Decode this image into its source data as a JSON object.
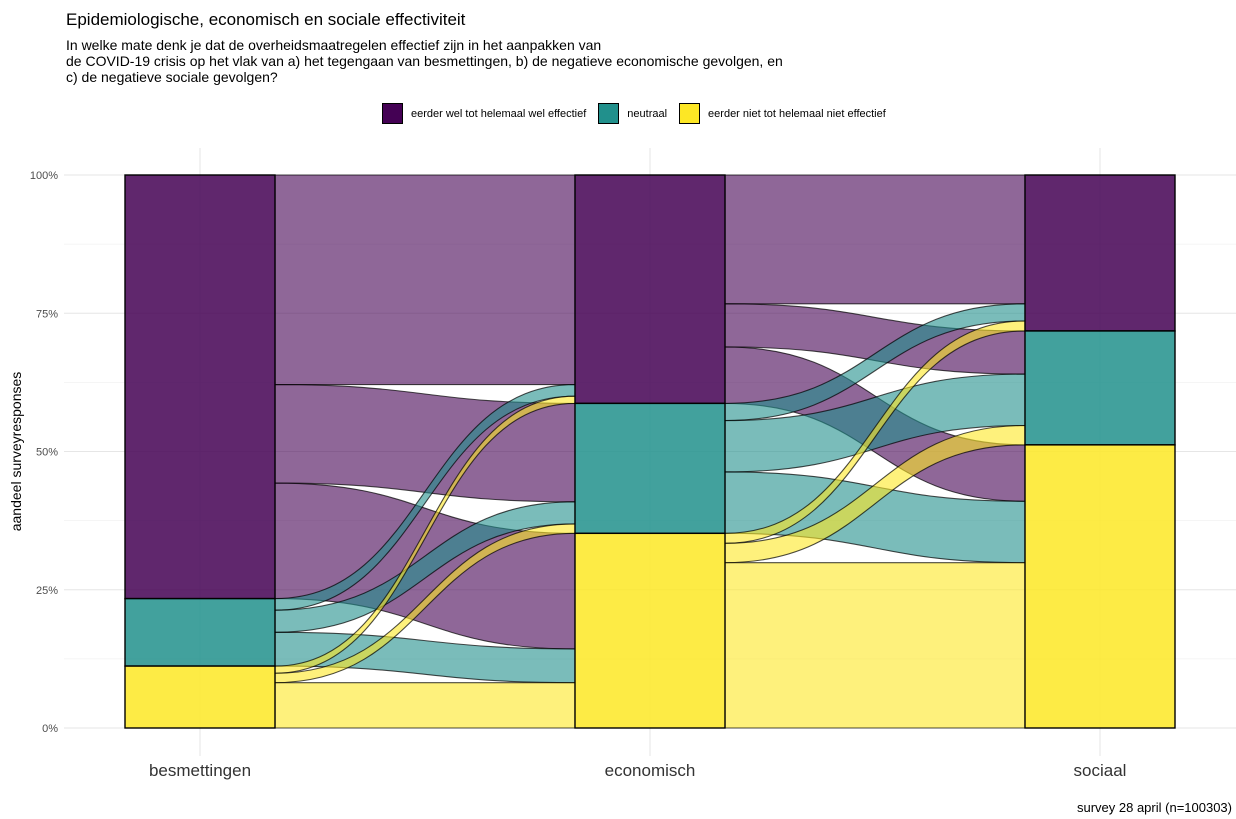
{
  "chart_data": {
    "type": "alluvial",
    "title": "Epidemiologische, economisch en sociale effectiviteit",
    "subtitle": "In welke mate denk je dat de overheidsmaatregelen effectief zijn in het aanpakken van\nde COVID-19 crisis op het vlak van a) het tegengaan van besmettingen, b) de negatieve economische gevolgen, en\nc) de negatieve sociale gevolgen?",
    "ylabel": "aandeel surveyresponses",
    "caption": "survey 28 april (n=100303)",
    "ylim": [
      0,
      1
    ],
    "yticks": [
      {
        "value": 0,
        "label": "0%"
      },
      {
        "value": 0.25,
        "label": "25%"
      },
      {
        "value": 0.5,
        "label": "50%"
      },
      {
        "value": 0.75,
        "label": "75%"
      },
      {
        "value": 1,
        "label": "100%"
      }
    ],
    "axes": [
      "besmettingen",
      "economisch",
      "sociaal"
    ],
    "categories": [
      "eerder wel tot helemaal wel effectief",
      "neutraal",
      "eerder niet tot helemaal niet effectief"
    ],
    "category_colors": [
      "#440154",
      "#21908C",
      "#FDE725"
    ],
    "legend_position": "top",
    "grid": true,
    "stratum_shares": {
      "besmettingen": [
        0.766,
        0.122,
        0.112
      ],
      "economisch": [
        0.413,
        0.235,
        0.352
      ],
      "sociaal": [
        0.282,
        0.206,
        0.512
      ]
    },
    "flows_besmettingen_economisch": [
      {
        "from": "eerder wel tot helemaal wel effectief",
        "to": "eerder wel tot helemaal wel effectief",
        "share": 0.379
      },
      {
        "from": "eerder wel tot helemaal wel effectief",
        "to": "neutraal",
        "share": 0.178
      },
      {
        "from": "eerder wel tot helemaal wel effectief",
        "to": "eerder niet tot helemaal niet effectief",
        "share": 0.209
      },
      {
        "from": "neutraal",
        "to": "eerder wel tot helemaal wel effectief",
        "share": 0.021
      },
      {
        "from": "neutraal",
        "to": "neutraal",
        "share": 0.04
      },
      {
        "from": "neutraal",
        "to": "eerder niet tot helemaal niet effectief",
        "share": 0.061
      },
      {
        "from": "eerder niet tot helemaal niet effectief",
        "to": "eerder wel tot helemaal wel effectief",
        "share": 0.013
      },
      {
        "from": "eerder niet tot helemaal niet effectief",
        "to": "neutraal",
        "share": 0.017
      },
      {
        "from": "eerder niet tot helemaal niet effectief",
        "to": "eerder niet tot helemaal niet effectief",
        "share": 0.082
      }
    ],
    "flows_economisch_sociaal": [
      {
        "from": "eerder wel tot helemaal wel effectief",
        "to": "eerder wel tot helemaal wel effectief",
        "share": 0.233
      },
      {
        "from": "eerder wel tot helemaal wel effectief",
        "to": "neutraal",
        "share": 0.078
      },
      {
        "from": "eerder wel tot helemaal wel effectief",
        "to": "eerder niet tot helemaal niet effectief",
        "share": 0.102
      },
      {
        "from": "neutraal",
        "to": "eerder wel tot helemaal wel effectief",
        "share": 0.031
      },
      {
        "from": "neutraal",
        "to": "neutraal",
        "share": 0.093
      },
      {
        "from": "neutraal",
        "to": "eerder niet tot helemaal niet effectief",
        "share": 0.111
      },
      {
        "from": "eerder niet tot helemaal niet effectief",
        "to": "eerder wel tot helemaal wel effectief",
        "share": 0.018
      },
      {
        "from": "eerder niet tot helemaal niet effectief",
        "to": "neutraal",
        "share": 0.035
      },
      {
        "from": "eerder niet tot helemaal niet effectief",
        "to": "eerder niet tot helemaal niet effectief",
        "share": 0.299
      }
    ]
  }
}
